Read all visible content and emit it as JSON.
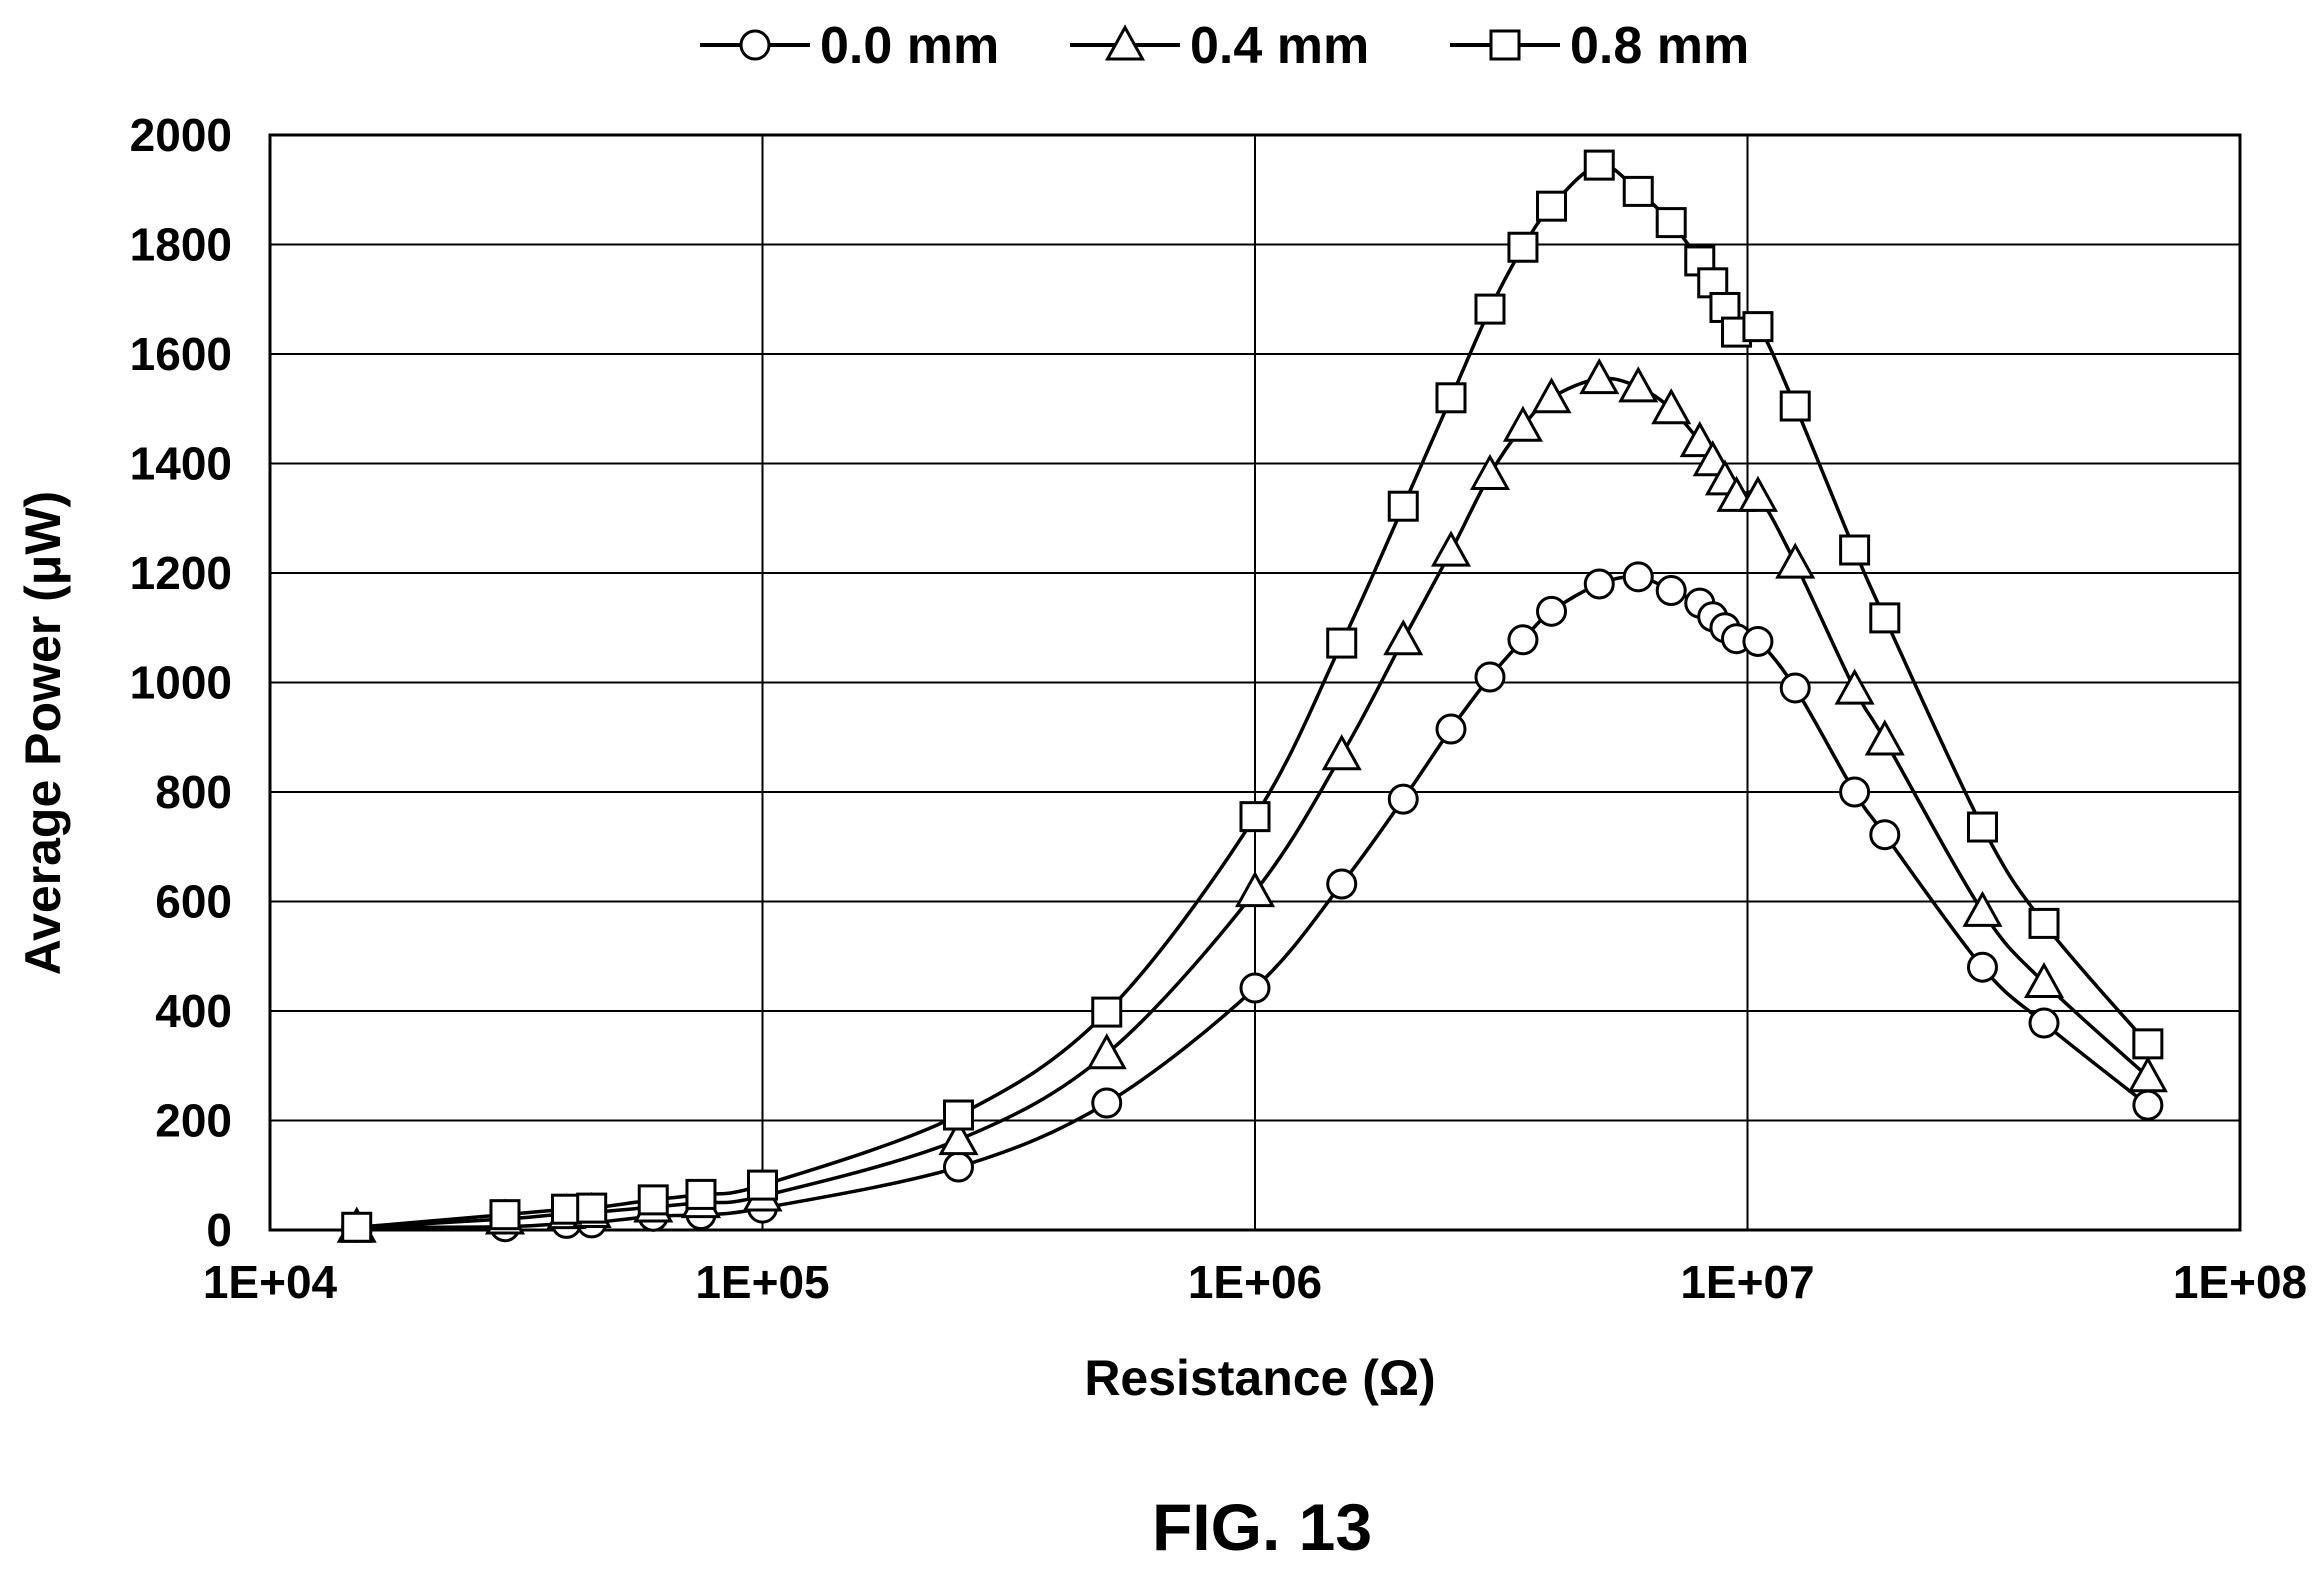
{
  "chart_data": {
    "type": "line",
    "xscale": "log",
    "xlim": [
      10000,
      100000000
    ],
    "ylim": [
      0,
      2000
    ],
    "grid": true,
    "legend_position": "top",
    "xlabel": "Resistance (Ω)",
    "ylabel": "Average Power (μW)",
    "caption": "FIG. 13",
    "x_tick_labels": [
      "1E+04",
      "1E+05",
      "1E+06",
      "1E+07",
      "1E+08"
    ],
    "x_ticks": [
      10000,
      100000,
      1000000,
      10000000,
      100000000
    ],
    "y_tick_labels": [
      "0",
      "200",
      "400",
      "600",
      "800",
      "1000",
      "1200",
      "1400",
      "1600",
      "1800",
      "2000"
    ],
    "y_ticks": [
      0,
      200,
      400,
      600,
      800,
      1000,
      1200,
      1400,
      1600,
      1800,
      2000
    ],
    "series": [
      {
        "name": "0.0 mm",
        "marker": "circle",
        "points": [
          [
            15000,
            5
          ],
          [
            30000,
            6
          ],
          [
            40000,
            12
          ],
          [
            45000,
            13
          ],
          [
            60000,
            25
          ],
          [
            75000,
            28
          ],
          [
            100000,
            40
          ],
          [
            250000,
            115
          ],
          [
            500000,
            232
          ],
          [
            1000000,
            442
          ],
          [
            1500000,
            632
          ],
          [
            2000000,
            787
          ],
          [
            2500000,
            915
          ],
          [
            3000000,
            1010
          ],
          [
            3500000,
            1078
          ],
          [
            4000000,
            1130
          ],
          [
            5000000,
            1180
          ],
          [
            6000000,
            1193
          ],
          [
            7000000,
            1168
          ],
          [
            8000000,
            1145
          ],
          [
            8500000,
            1120
          ],
          [
            9000000,
            1100
          ],
          [
            9500000,
            1080
          ],
          [
            10500000,
            1075
          ],
          [
            12500000,
            990
          ],
          [
            16500000,
            800
          ],
          [
            19000000,
            722
          ],
          [
            30000000,
            480
          ],
          [
            40000000,
            378
          ],
          [
            65000000,
            228
          ]
        ]
      },
      {
        "name": "0.4 mm",
        "marker": "triangle",
        "points": [
          [
            15000,
            5
          ],
          [
            30000,
            20
          ],
          [
            40000,
            30
          ],
          [
            45000,
            32
          ],
          [
            60000,
            42
          ],
          [
            75000,
            50
          ],
          [
            100000,
            62
          ],
          [
            250000,
            165
          ],
          [
            500000,
            322
          ],
          [
            1000000,
            618
          ],
          [
            1500000,
            868
          ],
          [
            2000000,
            1078
          ],
          [
            2500000,
            1240
          ],
          [
            3000000,
            1380
          ],
          [
            3500000,
            1468
          ],
          [
            4000000,
            1520
          ],
          [
            5000000,
            1555
          ],
          [
            6000000,
            1540
          ],
          [
            7000000,
            1500
          ],
          [
            8000000,
            1440
          ],
          [
            8500000,
            1405
          ],
          [
            9000000,
            1370
          ],
          [
            9500000,
            1340
          ],
          [
            10500000,
            1340
          ],
          [
            12500000,
            1218
          ],
          [
            16500000,
            988
          ],
          [
            19000000,
            895
          ],
          [
            30000000,
            582
          ],
          [
            40000000,
            452
          ],
          [
            65000000,
            280
          ]
        ]
      },
      {
        "name": "0.8 mm",
        "marker": "square",
        "points": [
          [
            15000,
            5
          ],
          [
            30000,
            28
          ],
          [
            40000,
            38
          ],
          [
            45000,
            40
          ],
          [
            60000,
            55
          ],
          [
            75000,
            65
          ],
          [
            100000,
            82
          ],
          [
            250000,
            210
          ],
          [
            500000,
            398
          ],
          [
            1000000,
            755
          ],
          [
            1500000,
            1072
          ],
          [
            2000000,
            1322
          ],
          [
            2500000,
            1520
          ],
          [
            3000000,
            1682
          ],
          [
            3500000,
            1795
          ],
          [
            4000000,
            1870
          ],
          [
            5000000,
            1945
          ],
          [
            6000000,
            1897
          ],
          [
            7000000,
            1840
          ],
          [
            8000000,
            1770
          ],
          [
            8500000,
            1730
          ],
          [
            9000000,
            1685
          ],
          [
            9500000,
            1640
          ],
          [
            10500000,
            1650
          ],
          [
            12500000,
            1505
          ],
          [
            16500000,
            1242
          ],
          [
            19000000,
            1118
          ],
          [
            30000000,
            736
          ],
          [
            40000000,
            560
          ],
          [
            65000000,
            340
          ]
        ]
      }
    ]
  }
}
